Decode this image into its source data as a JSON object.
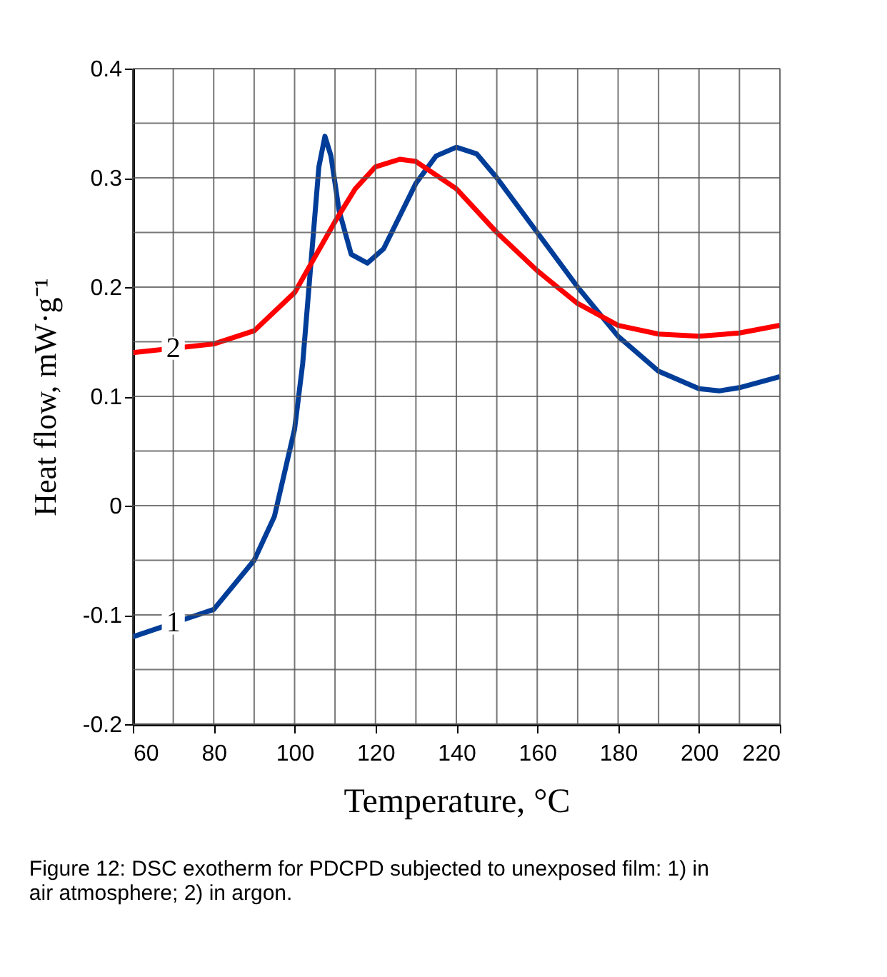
{
  "chart_data": {
    "type": "line",
    "xlabel": "Temperature, °C",
    "ylabel": "Heat flow, mW·g⁻¹",
    "annotations": [
      "Figure 12: DSC exotherm for PDCPD subjected to unexposed film: 1) in air atmosphere; 2) in argon."
    ],
    "xlim": [
      60,
      220
    ],
    "ylim": [
      -0.2,
      0.4
    ],
    "xticks": [
      60,
      {
        "value": 70,
        "label": null
      },
      80,
      {
        "value": 90,
        "label": null
      },
      100,
      {
        "value": 110,
        "label": null
      },
      120,
      {
        "value": 130,
        "label": null
      },
      140,
      {
        "value": 150,
        "label": null
      },
      160,
      {
        "value": 170,
        "label": null
      },
      180,
      {
        "value": 190,
        "label": null
      },
      200,
      {
        "value": 210,
        "label": null
      },
      220
    ],
    "yticks": [
      {
        "value": -0.2,
        "label": "-0.2"
      },
      {
        "value": -0.15,
        "label": null
      },
      {
        "value": -0.1,
        "label": "-0.1"
      },
      {
        "value": -0.05,
        "label": null
      },
      0,
      {
        "value": 0.05,
        "label": null
      },
      0.1,
      {
        "value": 0.15,
        "label": null
      },
      0.2,
      {
        "value": 0.25,
        "label": null
      },
      0.3,
      {
        "value": 0.35,
        "label": null
      },
      0.4
    ],
    "grid": true,
    "legend": false,
    "line_style": "solid",
    "marker": "none",
    "series": [
      {
        "name": "1",
        "color": "#003d99",
        "x": [
          60,
          80,
          90,
          95,
          100,
          102,
          104,
          106,
          107.5,
          109,
          111,
          114,
          118,
          122,
          126,
          130,
          135,
          140,
          145,
          150,
          160,
          170,
          180,
          190,
          200,
          205,
          210,
          220
        ],
        "values": [
          -0.12,
          -0.095,
          -0.05,
          -0.01,
          0.07,
          0.13,
          0.22,
          0.31,
          0.338,
          0.32,
          0.27,
          0.23,
          0.222,
          0.235,
          0.265,
          0.295,
          0.32,
          0.328,
          0.322,
          0.3,
          0.25,
          0.2,
          0.155,
          0.123,
          0.107,
          0.105,
          0.108,
          0.118
        ]
      },
      {
        "name": "2",
        "color": "#ff0000",
        "x": [
          60,
          80,
          90,
          100,
          110,
          115,
          120,
          126,
          130,
          140,
          150,
          160,
          170,
          180,
          190,
          200,
          210,
          220
        ],
        "values": [
          0.14,
          0.148,
          0.16,
          0.195,
          0.26,
          0.29,
          0.31,
          0.317,
          0.315,
          0.29,
          0.25,
          0.215,
          0.185,
          0.165,
          0.157,
          0.155,
          0.158,
          0.165
        ]
      }
    ]
  }
}
